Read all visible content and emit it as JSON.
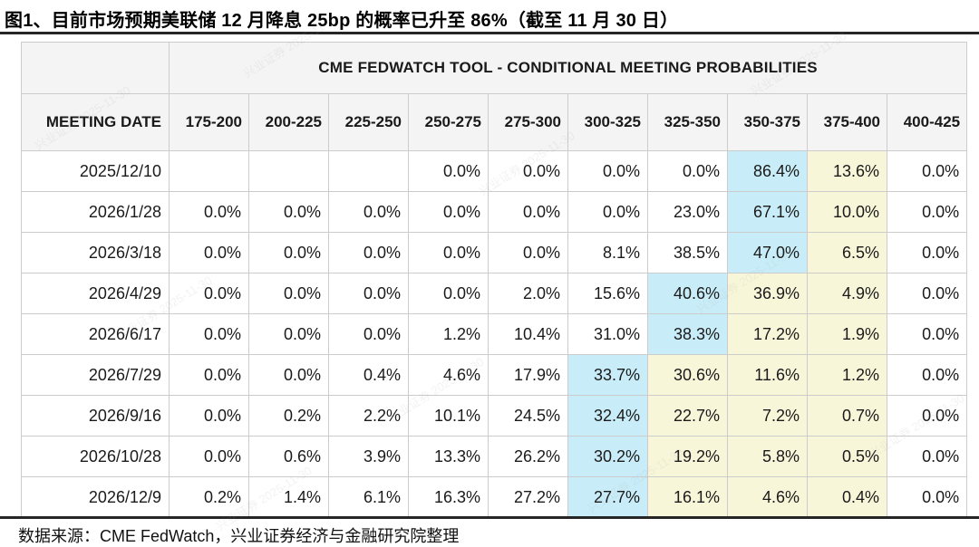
{
  "title": "图1、目前市场预期美联储 12 月降息 25bp 的概率已升至 86%（截至 11 月 30 日）",
  "source_note": "数据来源：CME FedWatch，兴业证券经济与金融研究院整理",
  "watermark_text": "兴业证券 2025-11-30",
  "colors": {
    "highlight_blue": "#c9edf8",
    "highlight_yellow": "#f8f6d9",
    "header_bg": "#f4f4f4",
    "border": "#cccccc",
    "rule": "#262626"
  },
  "table": {
    "group_header": "CME FEDWATCH TOOL - CONDITIONAL MEETING PROBABILITIES",
    "date_column_header": "MEETING DATE",
    "rate_range_headers": [
      "175-200",
      "200-225",
      "225-250",
      "250-275",
      "275-300",
      "300-325",
      "325-350",
      "350-375",
      "375-400",
      "400-425"
    ],
    "rows": [
      {
        "date": "2025/12/10",
        "values": [
          "",
          "",
          "",
          "0.0%",
          "0.0%",
          "0.0%",
          "0.0%",
          "86.4%",
          "13.6%",
          "0.0%"
        ],
        "blue_index": 7,
        "yellow_indices": [
          8
        ]
      },
      {
        "date": "2026/1/28",
        "values": [
          "0.0%",
          "0.0%",
          "0.0%",
          "0.0%",
          "0.0%",
          "0.0%",
          "23.0%",
          "67.1%",
          "10.0%",
          "0.0%"
        ],
        "blue_index": 7,
        "yellow_indices": [
          8
        ]
      },
      {
        "date": "2026/3/18",
        "values": [
          "0.0%",
          "0.0%",
          "0.0%",
          "0.0%",
          "0.0%",
          "8.1%",
          "38.5%",
          "47.0%",
          "6.5%",
          "0.0%"
        ],
        "blue_index": 7,
        "yellow_indices": [
          8
        ]
      },
      {
        "date": "2026/4/29",
        "values": [
          "0.0%",
          "0.0%",
          "0.0%",
          "0.0%",
          "2.0%",
          "15.6%",
          "40.6%",
          "36.9%",
          "4.9%",
          "0.0%"
        ],
        "blue_index": 6,
        "yellow_indices": [
          7,
          8
        ]
      },
      {
        "date": "2026/6/17",
        "values": [
          "0.0%",
          "0.0%",
          "0.0%",
          "1.2%",
          "10.4%",
          "31.0%",
          "38.3%",
          "17.2%",
          "1.9%",
          "0.0%"
        ],
        "blue_index": 6,
        "yellow_indices": [
          7,
          8
        ]
      },
      {
        "date": "2026/7/29",
        "values": [
          "0.0%",
          "0.0%",
          "0.4%",
          "4.6%",
          "17.9%",
          "33.7%",
          "30.6%",
          "11.6%",
          "1.2%",
          "0.0%"
        ],
        "blue_index": 5,
        "yellow_indices": [
          6,
          7,
          8
        ]
      },
      {
        "date": "2026/9/16",
        "values": [
          "0.0%",
          "0.2%",
          "2.2%",
          "10.1%",
          "24.5%",
          "32.4%",
          "22.7%",
          "7.2%",
          "0.7%",
          "0.0%"
        ],
        "blue_index": 5,
        "yellow_indices": [
          6,
          7,
          8
        ]
      },
      {
        "date": "2026/10/28",
        "values": [
          "0.0%",
          "0.6%",
          "3.9%",
          "13.3%",
          "26.2%",
          "30.2%",
          "19.2%",
          "5.8%",
          "0.5%",
          "0.0%"
        ],
        "blue_index": 5,
        "yellow_indices": [
          6,
          7,
          8
        ]
      },
      {
        "date": "2026/12/9",
        "values": [
          "0.2%",
          "1.4%",
          "6.1%",
          "16.3%",
          "27.2%",
          "27.7%",
          "16.1%",
          "4.6%",
          "0.4%",
          "0.0%"
        ],
        "blue_index": 5,
        "yellow_indices": [
          6,
          7,
          8
        ]
      }
    ]
  }
}
